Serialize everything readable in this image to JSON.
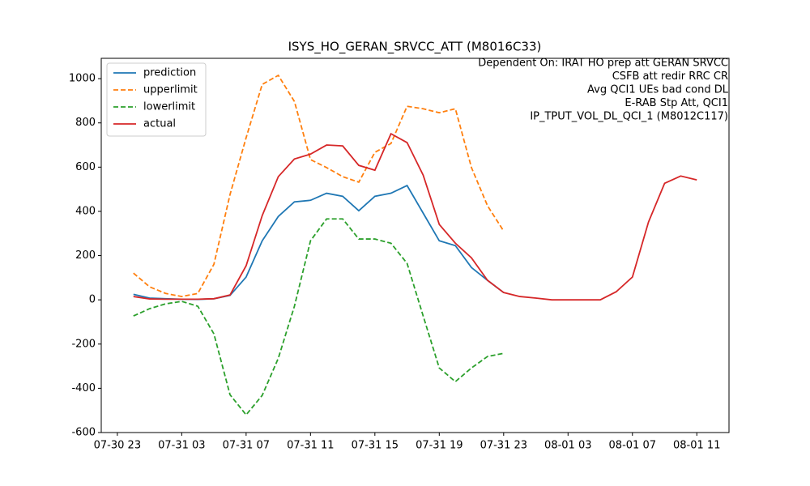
{
  "chart_data": {
    "type": "line",
    "title": "ISYS_HO_GERAN_SRVCC_ATT (M8016C33)",
    "annotations": [
      "Dependent On: IRAT HO prep att GERAN SRVCC",
      "CSFB att redir RRC CR",
      "Avg QCI1 UEs bad cond DL",
      "E-RAB Stp Att, QCI1",
      "IP_TPUT_VOL_DL_QCI_1 (M8012C117)"
    ],
    "x": [
      "07-31 00",
      "07-31 01",
      "07-31 02",
      "07-31 03",
      "07-31 04",
      "07-31 05",
      "07-31 06",
      "07-31 07",
      "07-31 08",
      "07-31 09",
      "07-31 10",
      "07-31 11",
      "07-31 12",
      "07-31 13",
      "07-31 14",
      "07-31 15",
      "07-31 16",
      "07-31 17",
      "07-31 18",
      "07-31 19",
      "07-31 20",
      "07-31 21",
      "07-31 22",
      "07-31 23",
      "08-01 00",
      "08-01 01",
      "08-01 02",
      "08-01 03",
      "08-01 04",
      "08-01 05",
      "08-01 06",
      "08-01 07",
      "08-01 08",
      "08-01 09",
      "08-01 10",
      "08-01 11"
    ],
    "series": [
      {
        "name": "prediction",
        "color": "#1f77b4",
        "dash": false,
        "values": [
          25,
          8,
          5,
          3,
          2,
          5,
          20,
          103,
          267,
          377,
          443,
          450,
          482,
          468,
          403,
          468,
          482,
          517,
          392,
          267,
          245,
          146,
          88,
          33,
          null,
          null,
          null,
          null,
          null,
          null,
          null,
          null,
          null,
          null,
          null,
          null
        ]
      },
      {
        "name": "upperlimit",
        "color": "#ff7f0e",
        "dash": true,
        "values": [
          121,
          59,
          29,
          15,
          29,
          161,
          476,
          733,
          974,
          1015,
          897,
          634,
          598,
          557,
          532,
          667,
          707,
          875,
          864,
          846,
          864,
          598,
          425,
          311,
          null,
          null,
          null,
          null,
          null,
          null,
          null,
          null,
          null,
          null,
          null,
          null
        ]
      },
      {
        "name": "lowerlimit",
        "color": "#2ca02c",
        "dash": true,
        "values": [
          -73,
          -40,
          -18,
          -7,
          -29,
          -154,
          -429,
          -520,
          -432,
          -264,
          -29,
          267,
          366,
          366,
          275,
          275,
          256,
          165,
          -73,
          -308,
          -370,
          -308,
          -256,
          -242,
          null,
          null,
          null,
          null,
          null,
          null,
          null,
          null,
          null,
          null,
          null,
          null
        ]
      },
      {
        "name": "actual",
        "color": "#d62728",
        "dash": false,
        "values": [
          15,
          4,
          3,
          3,
          3,
          5,
          22,
          154,
          381,
          557,
          637,
          659,
          700,
          696,
          608,
          586,
          751,
          711,
          564,
          341,
          256,
          190,
          88,
          33,
          15,
          8,
          0,
          0,
          0,
          0,
          37,
          103,
          352,
          527,
          560,
          542
        ]
      }
    ],
    "xlim": [
      "07-30 22",
      "08-01 13"
    ],
    "xticks": [
      "07-30 23",
      "07-31 03",
      "07-31 07",
      "07-31 11",
      "07-31 15",
      "07-31 19",
      "07-31 23",
      "08-01 03",
      "08-01 07",
      "08-01 11"
    ],
    "ylim": [
      -600,
      1092
    ],
    "yticks": [
      -600,
      -400,
      -200,
      0,
      200,
      400,
      600,
      800,
      1000
    ],
    "legend": "upper left"
  }
}
